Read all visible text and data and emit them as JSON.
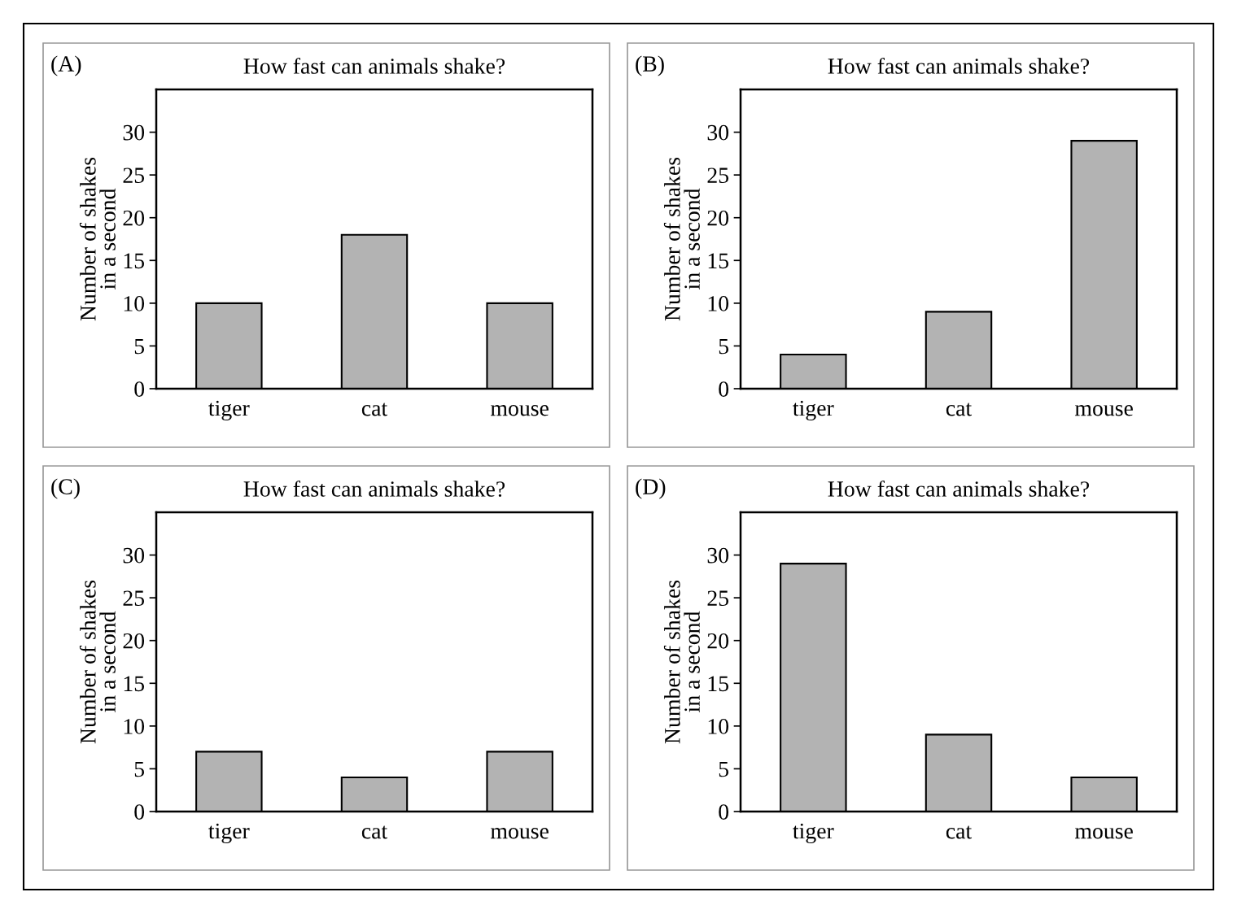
{
  "chart_data": [
    {
      "type": "bar",
      "title": "How fast can animals shake?",
      "annotations": [
        "(A)"
      ],
      "ylabel": "Number of shakes\nin a second",
      "categories": [
        "tiger",
        "cat",
        "mouse"
      ],
      "values": [
        10,
        18,
        10
      ],
      "color": "#b3b3b3",
      "ylim": [
        0,
        35
      ],
      "yticks": [
        0,
        5,
        10,
        15,
        20,
        25,
        30
      ],
      "grid": false,
      "legend": false
    },
    {
      "type": "bar",
      "title": "How fast can animals shake?",
      "annotations": [
        "(B)"
      ],
      "ylabel": "Number of shakes\nin a second",
      "categories": [
        "tiger",
        "cat",
        "mouse"
      ],
      "values": [
        4,
        9,
        29
      ],
      "color": "#b3b3b3",
      "ylim": [
        0,
        35
      ],
      "yticks": [
        0,
        5,
        10,
        15,
        20,
        25,
        30
      ],
      "grid": false,
      "legend": false
    },
    {
      "type": "bar",
      "title": "How fast can animals shake?",
      "annotations": [
        "(C)"
      ],
      "ylabel": "Number of shakes\nin a second",
      "categories": [
        "tiger",
        "cat",
        "mouse"
      ],
      "values": [
        7,
        4,
        7
      ],
      "color": "#b3b3b3",
      "ylim": [
        0,
        35
      ],
      "yticks": [
        0,
        5,
        10,
        15,
        20,
        25,
        30
      ],
      "grid": false,
      "legend": false
    },
    {
      "type": "bar",
      "title": "How fast can animals shake?",
      "annotations": [
        "(D)"
      ],
      "ylabel": "Number of shakes\nin a second",
      "categories": [
        "tiger",
        "cat",
        "mouse"
      ],
      "values": [
        29,
        9,
        4
      ],
      "color": "#b3b3b3",
      "ylim": [
        0,
        35
      ],
      "yticks": [
        0,
        5,
        10,
        15,
        20,
        25,
        30
      ],
      "grid": false,
      "legend": false
    }
  ]
}
